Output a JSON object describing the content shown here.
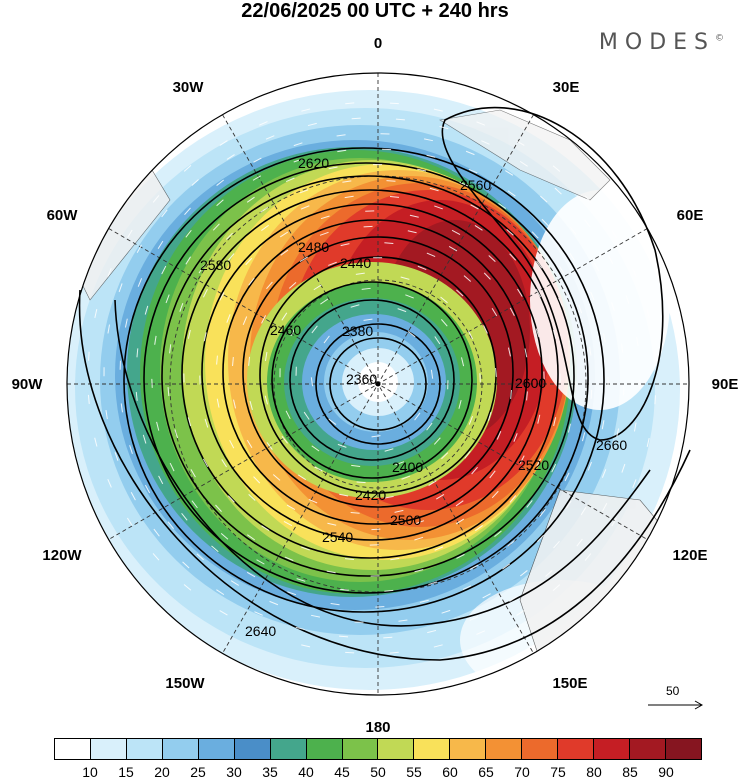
{
  "title": "22/06/2025  00 UTC  + 240 hrs",
  "logo": "MODES",
  "longitude_labels": [
    {
      "text": "0",
      "lon": 0
    },
    {
      "text": "30E",
      "lon": 30
    },
    {
      "text": "60E",
      "lon": 60
    },
    {
      "text": "90E",
      "lon": 90
    },
    {
      "text": "120E",
      "lon": 120
    },
    {
      "text": "150E",
      "lon": 150
    },
    {
      "text": "180",
      "lon": 180
    },
    {
      "text": "150W",
      "lon": -150
    },
    {
      "text": "120W",
      "lon": -120
    },
    {
      "text": "90W",
      "lon": -90
    },
    {
      "text": "60W",
      "lon": -60
    },
    {
      "text": "30W",
      "lon": -30
    }
  ],
  "contour_labels": [
    "2360",
    "2380",
    "2400",
    "2420",
    "2440",
    "2460",
    "2480",
    "2500",
    "2520",
    "2540",
    "2560",
    "2580",
    "2600",
    "2620",
    "2640",
    "2660"
  ],
  "reference_vector": "50",
  "colorbar": {
    "labels": [
      "10",
      "15",
      "20",
      "25",
      "30",
      "35",
      "40",
      "45",
      "50",
      "55",
      "60",
      "65",
      "70",
      "75",
      "80",
      "85",
      "90"
    ],
    "colors": [
      "#ffffff",
      "#d9f0fb",
      "#bce4f7",
      "#93cdee",
      "#6aaedf",
      "#4a8ec8",
      "#44a68c",
      "#4db14d",
      "#7cc24a",
      "#c1d955",
      "#f9e15a",
      "#f7b84a",
      "#f39134",
      "#ec6a2c",
      "#e03a2a",
      "#c51e24",
      "#a31922",
      "#861520"
    ]
  }
}
